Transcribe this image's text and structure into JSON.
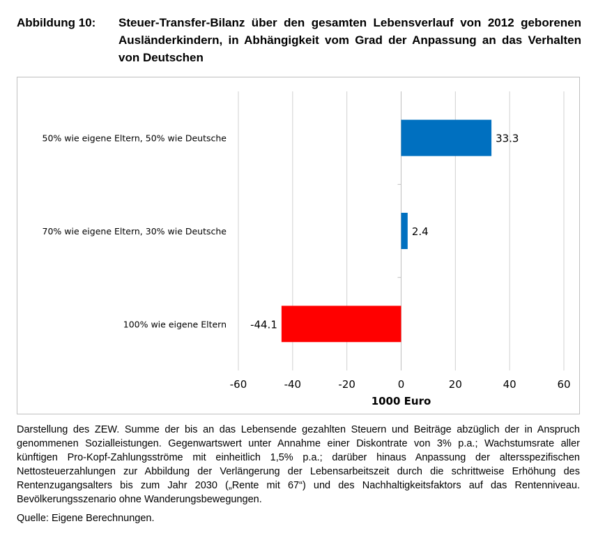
{
  "figure": {
    "label": "Abbildung 10:",
    "title": "Steuer-Transfer-Bilanz über den gesamten Lebensverlauf von 2012 geborenen Ausländerkindern, in Abhängigkeit vom Grad der Anpassung an das Verhalten von Deutschen"
  },
  "chart_data": {
    "type": "bar",
    "orientation": "horizontal",
    "title": "",
    "xlabel": "1000 Euro",
    "ylabel": "",
    "xlim": [
      -60,
      60
    ],
    "xticks": [
      -60,
      -40,
      -20,
      0,
      20,
      40,
      60
    ],
    "xtick_labels": [
      "-60",
      "-40",
      "-20",
      "0",
      "20",
      "40",
      "60"
    ],
    "grid": true,
    "categories": [
      "50% wie eigene Eltern, 50% wie Deutsche",
      "70% wie eigene Eltern, 30% wie Deutsche",
      "100% wie eigene Eltern"
    ],
    "values": [
      33.3,
      2.4,
      -44.1
    ],
    "value_labels": [
      "33.3",
      "2.4",
      "-44.1"
    ],
    "colors": [
      "#0070c0",
      "#0070c0",
      "#ff0000"
    ]
  },
  "notes": "Darstellung des ZEW. Summe der bis an das Lebensende gezahlten Steuern und Beiträge abzüglich der in Anspruch genommenen Sozialleistungen. Gegenwartswert unter Annahme einer Diskontrate von 3% p.a.; Wachstumsrate aller künftigen Pro-Kopf-Zahlungsströme mit einheitlich 1,5% p.a.; darüber hinaus Anpassung der altersspezifischen Nettosteuerzahlungen zur Abbildung der Verlängerung der Lebensarbeitszeit durch die schrittweise Erhöhung des Rentenzugangsalters bis zum Jahr 2030 („Rente mit 67“) und des Nachhaltigkeitsfaktors auf das Rentenniveau. Bevölkerungsszenario ohne Wanderungsbewegungen.",
  "source": "Quelle: Eigene Berechnungen."
}
